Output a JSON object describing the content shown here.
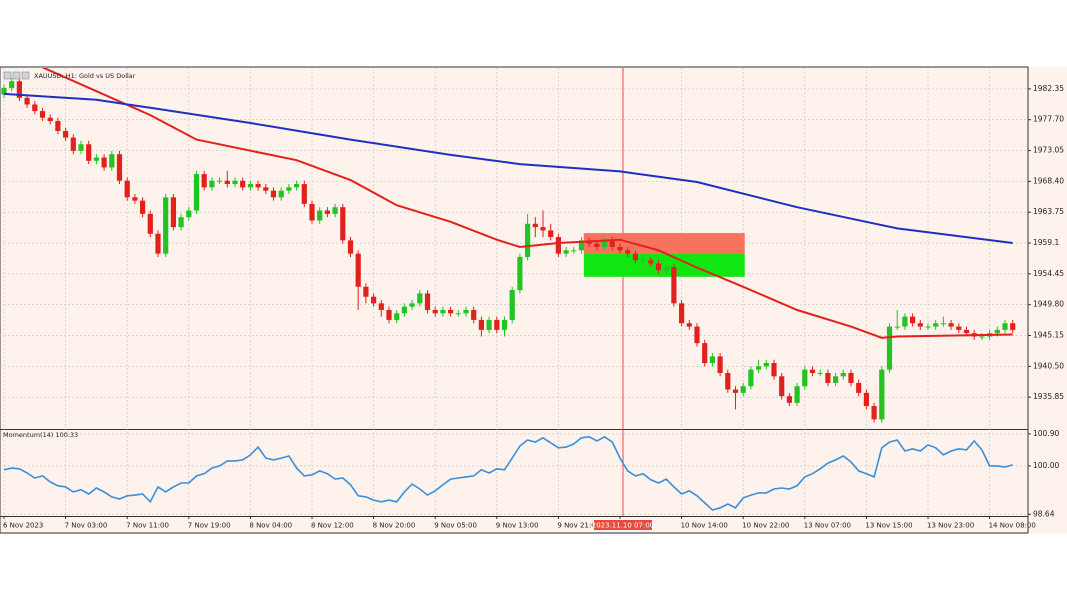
{
  "chart_data": [
    {
      "type": "candlestick",
      "title": "XAUUSD, H1: Gold vs US Dollar",
      "up_color": "#22c322",
      "down_color": "#e3211c",
      "grid": true,
      "crosshair_category": 80,
      "categories": [
        "6 Nov 2023",
        null,
        null,
        null,
        null,
        null,
        null,
        null,
        "7 Nov 03:00",
        null,
        null,
        null,
        null,
        null,
        null,
        null,
        "7 Nov 11:00",
        null,
        null,
        null,
        null,
        null,
        null,
        null,
        "7 Nov 19:00",
        null,
        null,
        null,
        null,
        null,
        null,
        null,
        "8 Nov 04:00",
        null,
        null,
        null,
        null,
        null,
        null,
        null,
        "8 Nov 12:00",
        null,
        null,
        null,
        null,
        null,
        null,
        null,
        "8 Nov 20:00",
        null,
        null,
        null,
        null,
        null,
        null,
        null,
        "9 Nov 05:00",
        null,
        null,
        null,
        null,
        null,
        null,
        null,
        "9 Nov 13:00",
        null,
        null,
        null,
        null,
        null,
        null,
        null,
        "9 Nov 21:00",
        null,
        null,
        null,
        null,
        null,
        null,
        null,
        "2023.11.10 07:00",
        null,
        null,
        null,
        null,
        null,
        null,
        null,
        "10 Nov 14:00",
        null,
        null,
        null,
        null,
        null,
        null,
        null,
        "10 Nov 22:00",
        null,
        null,
        null,
        null,
        null,
        null,
        null,
        "13 Nov 07:00",
        null,
        null,
        null,
        null,
        null,
        null,
        null,
        "13 Nov 15:00",
        null,
        null,
        null,
        null,
        null,
        null,
        null,
        "13 Nov 23:00",
        null,
        null,
        null,
        null,
        null,
        null,
        null,
        "14 Nov 08:00",
        null,
        null,
        null
      ],
      "open": [
        1981.5,
        1982.5,
        1983.5,
        1981,
        1980,
        1979,
        1978,
        1977.5,
        1976,
        1975,
        1973,
        1974,
        1971.5,
        1972,
        1970.5,
        1972.5,
        1968.5,
        1966,
        1965.5,
        1963.5,
        1960.5,
        1957.5,
        1966,
        1961.5,
        1963,
        1964,
        1969.5,
        1967.5,
        1968.5,
        1968.5,
        1968,
        1968.5,
        1967.5,
        1968,
        1967.5,
        1967,
        1966,
        1967,
        1967.5,
        1968,
        1965,
        1962.5,
        1964,
        1963.5,
        1964.5,
        1959.5,
        1957.5,
        1952.5,
        1951,
        1950,
        1949,
        1947.5,
        1948.5,
        1949.5,
        1950,
        1951.5,
        1949,
        1948.5,
        1949,
        1948.5,
        1948.5,
        1949,
        1947.5,
        1946,
        1947.5,
        1946,
        1947.5,
        1952,
        1957,
        1962,
        1961.5,
        1961,
        1960,
        1957.5,
        1958,
        1958,
        1959.5,
        1959,
        1958.5,
        1959.5,
        1958.5,
        1958,
        1957.5,
        1956.5,
        1956.5,
        1956,
        1955,
        1955.5,
        1950,
        1947,
        1946.5,
        1944,
        1941,
        1942,
        1939.5,
        1937,
        1936.5,
        1937.5,
        1940,
        1940.5,
        1941,
        1939,
        1936,
        1935,
        1937.5,
        1940,
        1939.5,
        1939.5,
        1938,
        1939,
        1939.5,
        1938,
        1936.5,
        1934.5,
        1932.5,
        1940,
        1946.5,
        1946.5,
        1948,
        1947,
        1946.5,
        1946.5,
        1947,
        1947,
        1946.5,
        1946,
        1945.5,
        1945,
        1945,
        1945.5,
        1946,
        1947
      ],
      "high": [
        1983,
        1984,
        1984,
        1981.5,
        1980.5,
        1979.5,
        1978.5,
        1978,
        1976.5,
        1975.5,
        1974.5,
        1974.5,
        1972.5,
        1972.5,
        1973,
        1973,
        1969,
        1966.5,
        1966,
        1964,
        1961,
        1966.5,
        1966.5,
        1963.5,
        1964.5,
        1970,
        1970,
        1969,
        1969,
        1970,
        1969,
        1969,
        1968.5,
        1968.5,
        1968,
        1967.5,
        1967.5,
        1968,
        1968.5,
        1968.5,
        1965.5,
        1964.5,
        1964.5,
        1965,
        1965,
        1960,
        1958,
        1953,
        1951.5,
        1950.5,
        1949.5,
        1949,
        1950,
        1950.5,
        1952,
        1952,
        1949.5,
        1949.5,
        1949.5,
        1949,
        1949.5,
        1949.5,
        1948,
        1948,
        1948,
        1948,
        1952.5,
        1957.5,
        1963.5,
        1963,
        1964,
        1962,
        1960.5,
        1958.5,
        1958.5,
        1960,
        1960,
        1959.5,
        1960,
        1960,
        1959,
        1958.5,
        1958,
        1957,
        1957,
        1956.5,
        1956,
        1956,
        1950.5,
        1947.5,
        1947,
        1944.5,
        1942.5,
        1942.5,
        1940,
        1937.5,
        1938,
        1940.5,
        1941.5,
        1941.5,
        1941.5,
        1939.5,
        1936.5,
        1938,
        1940.5,
        1940.5,
        1940,
        1940,
        1939.5,
        1940,
        1940,
        1938.5,
        1937,
        1935,
        1940.5,
        1947,
        1949,
        1948.5,
        1948.5,
        1947.5,
        1947,
        1947.5,
        1948,
        1947.5,
        1947,
        1946.5,
        1946,
        1945.5,
        1946,
        1946.5,
        1947.5,
        1947.5
      ],
      "low": [
        1981,
        1982,
        1980.5,
        1979.5,
        1978.5,
        1977.5,
        1977,
        1975.5,
        1974.5,
        1972.5,
        1972.5,
        1971,
        1971,
        1970,
        1970,
        1968,
        1965.5,
        1965,
        1963,
        1960,
        1957,
        1957,
        1961,
        1961,
        1962.5,
        1963.5,
        1967,
        1967,
        1968,
        1967.5,
        1967.5,
        1967,
        1967,
        1967,
        1966.5,
        1965.5,
        1965.5,
        1966.5,
        1967,
        1964.5,
        1962,
        1962,
        1963,
        1963,
        1959,
        1957,
        1949,
        1950,
        1949.5,
        1948,
        1947,
        1947,
        1948,
        1949,
        1949.5,
        1948.5,
        1948,
        1948,
        1948,
        1948,
        1948,
        1947,
        1945,
        1945.5,
        1945.5,
        1945,
        1947,
        1951.5,
        1956.5,
        1960,
        1960,
        1959.5,
        1957,
        1957,
        1957.5,
        1957.5,
        1958.5,
        1958,
        1958,
        1958,
        1957.5,
        1957,
        1956,
        1956,
        1955.5,
        1954.5,
        1954.5,
        1949.5,
        1946.5,
        1946,
        1943.5,
        1940.5,
        1940.5,
        1939,
        1936.5,
        1934,
        1936,
        1937,
        1939.5,
        1940,
        1938.5,
        1935.5,
        1934.5,
        1934.5,
        1937,
        1939,
        1939,
        1937.5,
        1937.5,
        1938.5,
        1937.5,
        1936,
        1934,
        1932,
        1932,
        1939.5,
        1946,
        1946,
        1946.5,
        1946,
        1946,
        1946,
        1946.5,
        1946,
        1945.5,
        1945,
        1944.5,
        1944.5,
        1944.5,
        1945,
        1945.5,
        1945.5
      ],
      "close": [
        1982.5,
        1983.5,
        1981,
        1980,
        1979,
        1978,
        1977.5,
        1976,
        1975,
        1973,
        1974,
        1971.5,
        1972,
        1970.5,
        1972.5,
        1968.5,
        1966,
        1965.5,
        1963.5,
        1960.5,
        1957.5,
        1966,
        1961.5,
        1963,
        1964,
        1969.5,
        1967.5,
        1968.5,
        1968.5,
        1968,
        1968.5,
        1967.5,
        1968,
        1967.5,
        1967,
        1966,
        1967,
        1967.5,
        1968,
        1965,
        1962.5,
        1964,
        1963.5,
        1964.5,
        1959.5,
        1957.5,
        1952.5,
        1951,
        1950,
        1949,
        1947.5,
        1948.5,
        1949.5,
        1950,
        1951.5,
        1949,
        1948.5,
        1949,
        1948.5,
        1948.5,
        1949,
        1947.5,
        1946,
        1947.5,
        1946,
        1947.5,
        1952,
        1957,
        1962,
        1961.5,
        1961,
        1960,
        1957.5,
        1958,
        1958,
        1959.5,
        1959,
        1958.5,
        1959.5,
        1958.5,
        1958,
        1957.5,
        1956.5,
        1956.5,
        1956,
        1955,
        1955.5,
        1950,
        1947,
        1946.5,
        1944,
        1941,
        1942,
        1939.5,
        1937,
        1936.5,
        1937.5,
        1940,
        1940.5,
        1941,
        1939,
        1936,
        1935,
        1937.5,
        1940,
        1939.5,
        1939.5,
        1938,
        1939,
        1939.5,
        1938,
        1936.5,
        1934.5,
        1932.5,
        1940,
        1946.5,
        1946.5,
        1948,
        1947,
        1946.5,
        1946.5,
        1947,
        1947,
        1946.5,
        1946,
        1945.5,
        1945,
        1945,
        1945.5,
        1946,
        1947,
        1946
      ],
      "lines": [
        {
          "color": "#e3211c",
          "x": [
            5,
            12,
            19,
            25,
            38,
            45,
            51,
            58,
            64,
            67,
            72,
            80,
            85,
            90,
            96,
            103,
            110,
            114,
            116,
            131
          ],
          "values": [
            1985.6,
            1982,
            1978.4,
            1974.7,
            1971.6,
            1968.6,
            1964.8,
            1962.3,
            1959.6,
            1958.5,
            1959.1,
            1959.6,
            1958,
            1955.4,
            1952.5,
            1949,
            1946.5,
            1944.8,
            1945,
            1945.3
          ]
        },
        {
          "color": "#1f2fc0",
          "x": [
            0,
            12,
            19,
            32,
            45,
            58,
            67,
            80,
            90,
            103,
            116,
            131
          ],
          "values": [
            1981.6,
            1980.7,
            1979.5,
            1977.2,
            1974.7,
            1972.4,
            1971,
            1969.9,
            1968.3,
            1964.5,
            1961.3,
            1959.1
          ]
        }
      ],
      "zones": [
        {
          "color": "#f8735e",
          "start": 75.3,
          "end": 96.2,
          "from": 1957.45,
          "to": 1960.6
        },
        {
          "color": "#12e612",
          "start": 75.3,
          "end": 96.2,
          "from": 1954.0,
          "to": 1957.45
        }
      ],
      "ylim": [
        1931.2,
        1985.5
      ],
      "yticks": [
        1982.35,
        {
          "value": 1977.7,
          "label": "1977.70"
        },
        1973.05,
        {
          "value": 1968.4,
          "label": "1968.40"
        },
        1963.75,
        1959.1,
        1954.45,
        {
          "value": 1949.8,
          "label": "1949.80"
        },
        1945.15,
        {
          "value": 1940.5,
          "label": "1940.50"
        },
        1935.85
      ]
    },
    {
      "type": "line",
      "title": "Momentum(14) 100.33",
      "color": "#3a8fd8",
      "values": [
        99.89,
        99.94,
        99.92,
        99.8,
        99.66,
        99.72,
        99.55,
        99.44,
        99.41,
        99.27,
        99.33,
        99.21,
        99.38,
        99.27,
        99.13,
        99.07,
        99.16,
        99.18,
        99.21,
        98.99,
        99.41,
        99.27,
        99.41,
        99.52,
        99.52,
        99.72,
        99.78,
        99.94,
        100.0,
        100.14,
        100.14,
        100.17,
        100.31,
        100.53,
        100.22,
        100.17,
        100.22,
        100.28,
        99.94,
        99.72,
        99.75,
        99.86,
        99.78,
        99.63,
        99.66,
        99.47,
        99.16,
        99.13,
        99.04,
        98.99,
        99.04,
        98.99,
        99.27,
        99.49,
        99.35,
        99.18,
        99.3,
        99.47,
        99.63,
        99.66,
        99.69,
        99.72,
        99.89,
        99.8,
        99.92,
        99.89,
        100.22,
        100.56,
        100.73,
        100.67,
        100.79,
        100.65,
        100.51,
        100.53,
        100.62,
        100.79,
        100.82,
        100.7,
        100.82,
        100.67,
        100.22,
        99.86,
        99.72,
        99.78,
        99.61,
        99.52,
        99.63,
        99.41,
        99.21,
        99.3,
        99.16,
        98.96,
        98.76,
        98.82,
        98.93,
        98.82,
        99.1,
        99.18,
        99.24,
        99.24,
        99.35,
        99.38,
        99.35,
        99.44,
        99.69,
        99.78,
        99.92,
        100.08,
        100.17,
        100.28,
        100.11,
        99.86,
        99.78,
        99.69,
        100.51,
        100.67,
        100.73,
        100.42,
        100.48,
        100.42,
        100.59,
        100.51,
        100.31,
        100.42,
        100.48,
        100.45,
        100.7,
        100.45,
        100.0,
        100.0,
        99.97,
        100.03
      ],
      "ylim": [
        98.62,
        101.01
      ],
      "yticks": [
        {
          "value": 100.9,
          "label": "100.90"
        },
        {
          "value": 100,
          "label": "100.00"
        },
        98.64
      ]
    }
  ]
}
